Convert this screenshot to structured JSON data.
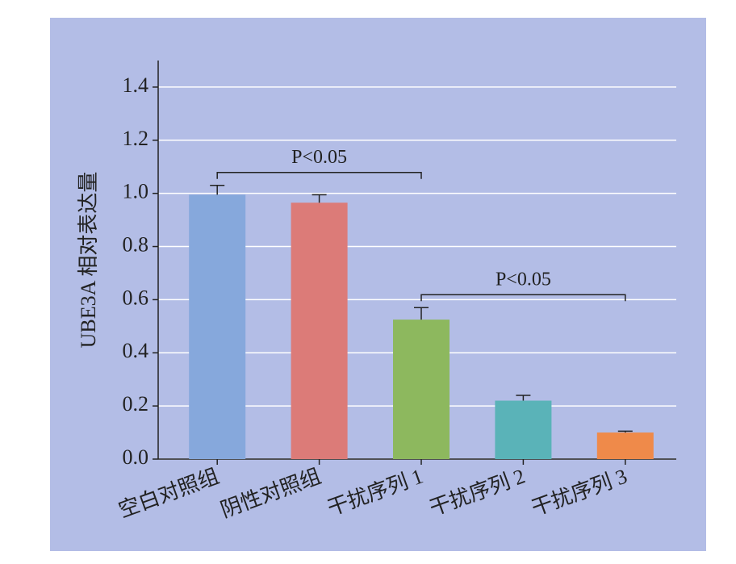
{
  "chart_data": {
    "type": "bar",
    "y_label": "UBE3A 相对表达量",
    "categories": [
      "空白对照组",
      "阴性对照组",
      "干扰序列 1",
      "干扰序列 2",
      "干扰序列 3"
    ],
    "values": [
      0.995,
      0.965,
      0.525,
      0.22,
      0.1
    ],
    "errors": [
      0.035,
      0.03,
      0.045,
      0.02,
      0.005
    ],
    "colors": [
      "#86a8dc",
      "#dc7b78",
      "#8db85e",
      "#5ab3b8",
      "#ef8a4a"
    ],
    "ylim": [
      0,
      1.5
    ],
    "yticks": [
      {
        "value": 0,
        "label": "0.0"
      },
      0.2,
      0.4,
      0.6,
      0.8,
      {
        "value": 1,
        "label": "1.0"
      },
      1.2,
      1.4
    ],
    "grid": true,
    "annotations": [
      {
        "text": "P<0.05",
        "from": "空白对照组",
        "to": "干扰序列 1"
      },
      {
        "text": "P<0.05",
        "from": "干扰序列 1",
        "to": "干扰序列 3"
      }
    ]
  }
}
